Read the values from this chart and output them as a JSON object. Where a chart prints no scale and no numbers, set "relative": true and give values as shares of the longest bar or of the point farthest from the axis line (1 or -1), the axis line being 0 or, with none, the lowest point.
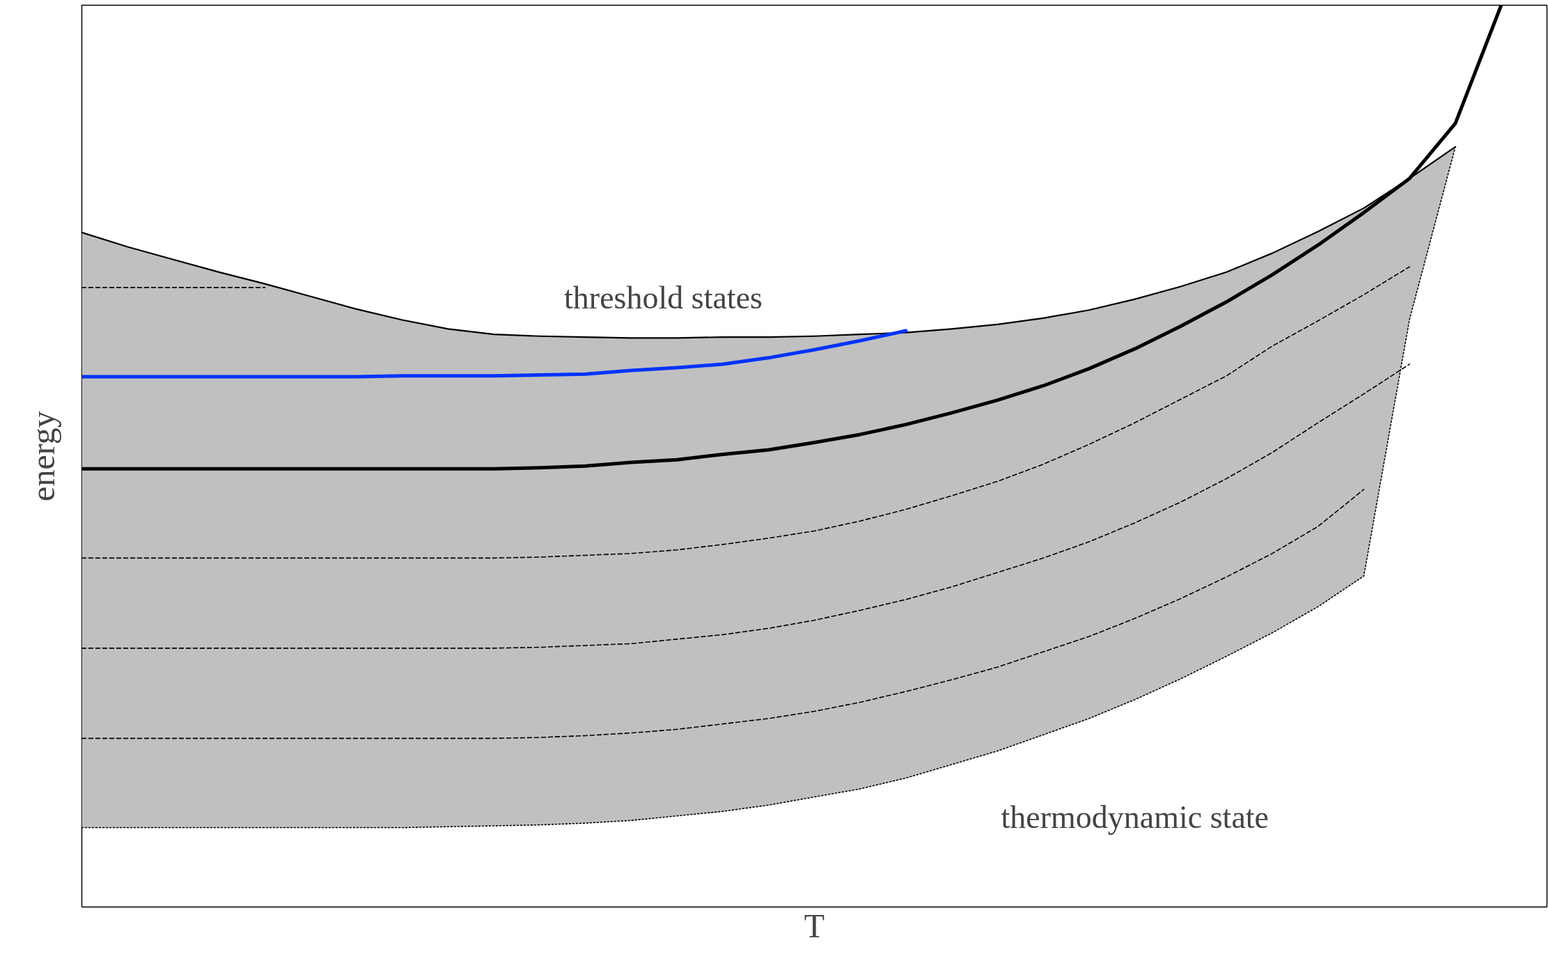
{
  "chart_data": {
    "type": "line",
    "relative": true,
    "xlabel": "T",
    "ylabel": "energy",
    "categories": [
      null,
      null,
      null,
      null,
      null,
      null,
      null,
      null,
      null,
      null,
      null,
      null,
      null,
      null,
      null,
      null,
      null,
      null,
      null,
      null,
      null,
      null,
      null,
      null,
      null,
      null,
      null,
      null,
      null,
      null,
      null,
      null
    ],
    "annotations": [
      "threshold states",
      "thermodynamic state"
    ],
    "series": [
      {
        "color": "#000000",
        "line_style": "dashed",
        "values": [
          0.687,
          0.687,
          0.687,
          0.687,
          0.687,
          null,
          null,
          null,
          null,
          null,
          null,
          null,
          null,
          null,
          null,
          null,
          null,
          null,
          null,
          null,
          null,
          null,
          null,
          null,
          null,
          null,
          null,
          null,
          null,
          null,
          null,
          null
        ]
      },
      {
        "color": "#000000",
        "line_style": "dashed",
        "values": [
          0.387,
          0.387,
          0.387,
          0.387,
          0.387,
          0.387,
          0.387,
          0.387,
          0.387,
          0.387,
          0.388,
          0.39,
          0.392,
          0.396,
          0.402,
          0.409,
          0.417,
          0.428,
          0.441,
          0.456,
          0.472,
          0.491,
          0.513,
          0.537,
          0.563,
          0.589,
          0.622,
          0.65,
          0.679,
          0.71,
          null,
          null
        ]
      },
      {
        "color": "#000000",
        "line_style": "dashed",
        "values": [
          0.287,
          0.287,
          0.287,
          0.287,
          0.287,
          0.287,
          0.287,
          0.287,
          0.287,
          0.287,
          0.288,
          0.29,
          0.292,
          0.297,
          0.302,
          0.309,
          0.318,
          0.329,
          0.341,
          0.355,
          0.371,
          0.387,
          0.405,
          0.426,
          0.449,
          0.475,
          0.504,
          0.537,
          0.569,
          0.602,
          null,
          null
        ]
      },
      {
        "color": "#000000",
        "line_style": "dashed",
        "values": [
          0.187,
          0.187,
          0.187,
          0.187,
          0.187,
          0.187,
          0.187,
          0.187,
          0.187,
          0.187,
          0.188,
          0.19,
          0.193,
          0.197,
          0.203,
          0.209,
          0.217,
          0.227,
          0.239,
          0.252,
          0.266,
          0.283,
          0.3,
          0.32,
          0.342,
          0.366,
          0.392,
          0.422,
          0.463,
          null,
          null,
          null
        ]
      },
      {
        "color": "#000000",
        "line_style": "dotted",
        "values": [
          0.088,
          0.088,
          0.088,
          0.088,
          0.088,
          0.088,
          0.088,
          0.088,
          0.089,
          0.09,
          0.091,
          0.093,
          0.096,
          0.101,
          0.106,
          0.113,
          0.122,
          0.131,
          0.143,
          0.158,
          0.173,
          0.191,
          0.209,
          0.23,
          0.253,
          0.278,
          0.304,
          0.333,
          0.367,
          0.652,
          0.843,
          null
        ]
      },
      {
        "color": "#000000",
        "line_style": "solid",
        "values": [
          0.748,
          0.732,
          0.718,
          0.704,
          0.691,
          0.677,
          0.663,
          0.651,
          0.641,
          0.635,
          0.633,
          0.632,
          0.631,
          0.631,
          0.632,
          0.632,
          0.633,
          0.635,
          0.637,
          0.641,
          0.646,
          0.653,
          0.662,
          0.674,
          0.688,
          0.704,
          0.725,
          0.749,
          0.775,
          0.808,
          0.843,
          null
        ]
      },
      {
        "color": "#000000",
        "line_style": "solid",
        "values": [
          0.486,
          0.486,
          0.486,
          0.486,
          0.486,
          0.486,
          0.486,
          0.486,
          0.486,
          0.486,
          0.487,
          0.489,
          0.493,
          0.496,
          0.502,
          0.507,
          0.515,
          0.524,
          0.535,
          0.548,
          0.562,
          0.578,
          0.597,
          0.619,
          0.644,
          0.671,
          0.701,
          0.734,
          0.77,
          0.808,
          0.869,
          1.0
        ],
        "lower": [
          0.088,
          0.088,
          0.088,
          0.088,
          0.088,
          0.088,
          0.088,
          0.088,
          0.089,
          0.09,
          0.091,
          0.093,
          0.096,
          0.101,
          0.106,
          0.113,
          0.122,
          0.131,
          0.143,
          0.158,
          0.173,
          0.191,
          0.209,
          0.23,
          0.253,
          0.278,
          0.304,
          0.333,
          0.367,
          0.652,
          0.843,
          null
        ],
        "upper": [
          0.748,
          0.732,
          0.718,
          0.704,
          0.691,
          0.677,
          0.663,
          0.651,
          0.641,
          0.635,
          0.633,
          0.632,
          0.631,
          0.631,
          0.632,
          0.632,
          0.633,
          0.635,
          0.637,
          0.641,
          0.646,
          0.653,
          0.662,
          0.674,
          0.688,
          0.704,
          0.725,
          0.749,
          0.775,
          0.808,
          0.843,
          null
        ]
      },
      {
        "color": "#0033ff",
        "line_style": "solid",
        "values": [
          0.588,
          0.588,
          0.588,
          0.588,
          0.588,
          0.588,
          0.588,
          0.589,
          0.589,
          0.589,
          0.59,
          0.591,
          0.595,
          0.598,
          0.602,
          0.609,
          0.618,
          0.628,
          0.639,
          null,
          null,
          null,
          null,
          null,
          null,
          null,
          null,
          null,
          null,
          null,
          null,
          null
        ]
      }
    ]
  }
}
